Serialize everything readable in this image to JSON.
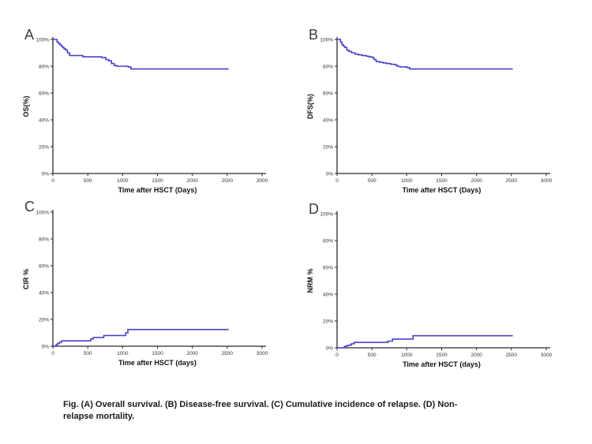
{
  "figure_background": "#ffffff",
  "axis_color": "#2b2b2b",
  "caption": {
    "full_text": "Fig. (A) Overall survival. (B) Disease-free survival. (C) Cumulative incidence of relapse. (D) Non-relapse mortality.",
    "lines": [
      "Fig. (A) Overall survival. (B) Disease-free survival. (C) Cumulative incidence of relapse. (D) Non-",
      "relapse mortality."
    ]
  },
  "chart_data": [
    {
      "type": "line",
      "panel_label": "A",
      "title": "Overall survival",
      "xlabel": "Time after HSCT (Days)",
      "ylabel": "OS(%)",
      "xlim": [
        0,
        3000
      ],
      "ylim": [
        0,
        100
      ],
      "x_ticks": [
        0,
        500,
        1000,
        1500,
        2000,
        2500,
        3000
      ],
      "x_tick_labels": [
        "0",
        "500",
        "1000",
        "1500",
        "2000",
        "2500",
        "3000"
      ],
      "y_ticks": [
        0,
        20,
        40,
        60,
        80,
        100
      ],
      "y_tick_labels": [
        "0%",
        "20%",
        "40%",
        "60%",
        "80%",
        "100%"
      ],
      "step": true,
      "grid": false,
      "legend": "none",
      "line_color": "#4a42c8",
      "points": [
        [
          0,
          100
        ],
        [
          40,
          100
        ],
        [
          60,
          98
        ],
        [
          80,
          97
        ],
        [
          100,
          96
        ],
        [
          120,
          95
        ],
        [
          140,
          94
        ],
        [
          160,
          93
        ],
        [
          185,
          92
        ],
        [
          210,
          90
        ],
        [
          240,
          88
        ],
        [
          430,
          87
        ],
        [
          700,
          86.5
        ],
        [
          760,
          85
        ],
        [
          800,
          84
        ],
        [
          840,
          82
        ],
        [
          880,
          80.5
        ],
        [
          920,
          80
        ],
        [
          1080,
          79.5
        ],
        [
          1120,
          78
        ],
        [
          2520,
          78
        ]
      ]
    },
    {
      "type": "line",
      "panel_label": "B",
      "title": "Disease-free survival",
      "xlabel": "Time after HSCT (Days)",
      "ylabel": "DFS(%)",
      "xlim": [
        0,
        3000
      ],
      "ylim": [
        0,
        100
      ],
      "x_ticks": [
        0,
        500,
        1000,
        1500,
        2000,
        2500,
        3000
      ],
      "x_tick_labels": [
        "0",
        "500",
        "1000",
        "1500",
        "2000",
        "2500",
        "3000"
      ],
      "y_ticks": [
        0,
        20,
        40,
        60,
        80,
        100
      ],
      "y_tick_labels": [
        "0%",
        "20%",
        "40%",
        "60%",
        "80%",
        "100%"
      ],
      "step": true,
      "grid": false,
      "legend": "none",
      "line_color": "#4a42c8",
      "points": [
        [
          0,
          100
        ],
        [
          25,
          100
        ],
        [
          50,
          98
        ],
        [
          70,
          96
        ],
        [
          90,
          95
        ],
        [
          110,
          94
        ],
        [
          140,
          92
        ],
        [
          170,
          91
        ],
        [
          210,
          90
        ],
        [
          260,
          89
        ],
        [
          310,
          88.5
        ],
        [
          360,
          88
        ],
        [
          420,
          87.5
        ],
        [
          460,
          87
        ],
        [
          500,
          86.5
        ],
        [
          530,
          85
        ],
        [
          560,
          83.5
        ],
        [
          610,
          83
        ],
        [
          660,
          82.5
        ],
        [
          710,
          82
        ],
        [
          770,
          81.5
        ],
        [
          830,
          81
        ],
        [
          860,
          80
        ],
        [
          900,
          79.5
        ],
        [
          1000,
          79
        ],
        [
          1040,
          78
        ],
        [
          2520,
          78
        ]
      ]
    },
    {
      "type": "line",
      "panel_label": "C",
      "title": "Cumulative incidence of relapse",
      "xlabel": "Time after HSCT (days)",
      "ylabel": "CIR %",
      "xlim": [
        0,
        3000
      ],
      "ylim": [
        0,
        100
      ],
      "x_ticks": [
        0,
        500,
        1000,
        1500,
        2000,
        2500,
        3000
      ],
      "x_tick_labels": [
        "0",
        "500",
        "1000",
        "1500",
        "2000",
        "2500",
        "3000"
      ],
      "y_ticks": [
        0,
        20,
        40,
        60,
        80,
        100
      ],
      "y_tick_labels": [
        "0%",
        "20%",
        "40%",
        "60%",
        "80%",
        "100%"
      ],
      "step": true,
      "grid": false,
      "legend": "none",
      "line_color": "#4a42c8",
      "points": [
        [
          0,
          0
        ],
        [
          30,
          0
        ],
        [
          45,
          1
        ],
        [
          65,
          2
        ],
        [
          95,
          3
        ],
        [
          125,
          4
        ],
        [
          520,
          4
        ],
        [
          545,
          5.5
        ],
        [
          580,
          6.5
        ],
        [
          700,
          6.5
        ],
        [
          730,
          8
        ],
        [
          1020,
          8
        ],
        [
          1045,
          10
        ],
        [
          1075,
          12.5
        ],
        [
          2520,
          12.5
        ]
      ]
    },
    {
      "type": "line",
      "panel_label": "D",
      "title": "Non-relapse mortality",
      "xlabel": "Time after HSCT (days)",
      "ylabel": "NRM %",
      "xlim": [
        0,
        3000
      ],
      "ylim": [
        0,
        100
      ],
      "x_ticks": [
        0,
        500,
        1000,
        1500,
        2000,
        2500,
        3000
      ],
      "x_tick_labels": [
        "0",
        "500",
        "1000",
        "1500",
        "2000",
        "2500",
        "3000"
      ],
      "y_ticks": [
        0,
        20,
        40,
        60,
        80,
        100
      ],
      "y_tick_labels": [
        "0%",
        "20%",
        "40%",
        "60%",
        "80%",
        "100%"
      ],
      "step": true,
      "grid": false,
      "legend": "none",
      "line_color": "#4a42c8",
      "points": [
        [
          0,
          0
        ],
        [
          80,
          0
        ],
        [
          105,
          1
        ],
        [
          135,
          1.5
        ],
        [
          165,
          2
        ],
        [
          205,
          3
        ],
        [
          245,
          4
        ],
        [
          700,
          4
        ],
        [
          730,
          5
        ],
        [
          795,
          6.5
        ],
        [
          1060,
          6.5
        ],
        [
          1090,
          9
        ],
        [
          2520,
          9
        ]
      ]
    }
  ]
}
